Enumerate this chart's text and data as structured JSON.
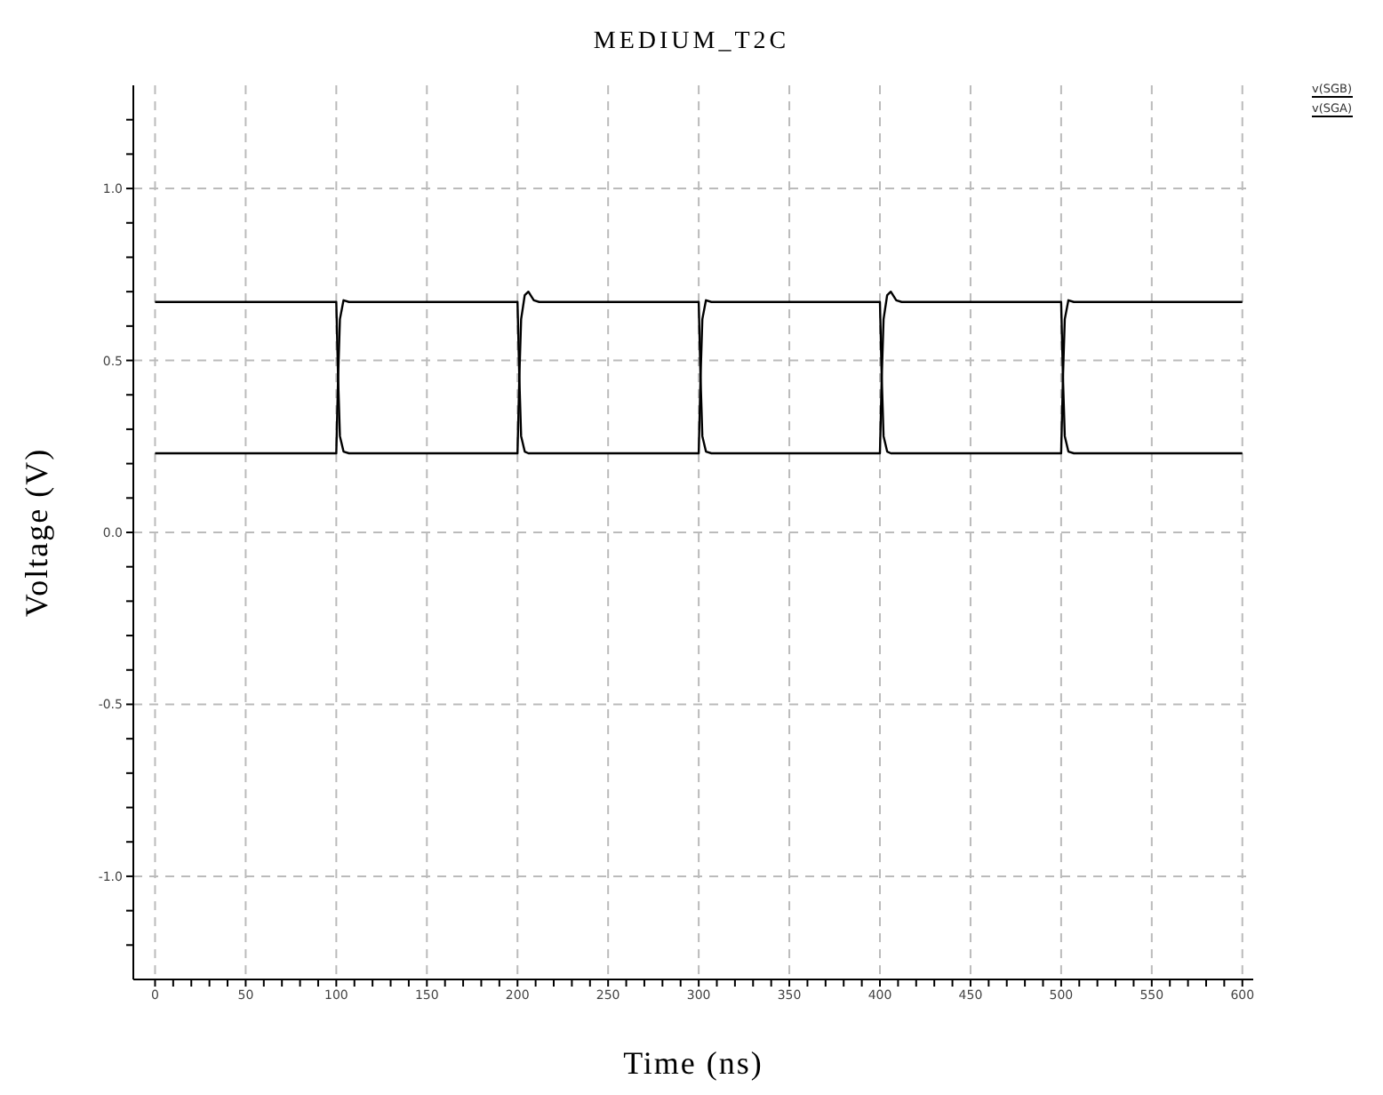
{
  "chart_data": {
    "type": "line",
    "title": "MEDIUM_T2C",
    "xlabel": "Time (ns)",
    "ylabel": "Voltage (V)",
    "xlim": [
      -12,
      606
    ],
    "ylim": [
      -1.3,
      1.3
    ],
    "xticks": [
      0,
      {
        "value": 10,
        "label": null
      },
      {
        "value": 20,
        "label": null
      },
      {
        "value": 30,
        "label": null
      },
      {
        "value": 40,
        "label": null
      },
      50,
      {
        "value": 60,
        "label": null
      },
      {
        "value": 70,
        "label": null
      },
      {
        "value": 80,
        "label": null
      },
      {
        "value": 90,
        "label": null
      },
      100,
      {
        "value": 110,
        "label": null
      },
      {
        "value": 120,
        "label": null
      },
      {
        "value": 130,
        "label": null
      },
      {
        "value": 140,
        "label": null
      },
      150,
      {
        "value": 160,
        "label": null
      },
      {
        "value": 170,
        "label": null
      },
      {
        "value": 180,
        "label": null
      },
      {
        "value": 190,
        "label": null
      },
      200,
      {
        "value": 210,
        "label": null
      },
      {
        "value": 220,
        "label": null
      },
      {
        "value": 230,
        "label": null
      },
      {
        "value": 240,
        "label": null
      },
      250,
      {
        "value": 260,
        "label": null
      },
      {
        "value": 270,
        "label": null
      },
      {
        "value": 280,
        "label": null
      },
      {
        "value": 290,
        "label": null
      },
      300,
      {
        "value": 310,
        "label": null
      },
      {
        "value": 320,
        "label": null
      },
      {
        "value": 330,
        "label": null
      },
      {
        "value": 340,
        "label": null
      },
      350,
      {
        "value": 360,
        "label": null
      },
      {
        "value": 370,
        "label": null
      },
      {
        "value": 380,
        "label": null
      },
      {
        "value": 390,
        "label": null
      },
      400,
      {
        "value": 410,
        "label": null
      },
      {
        "value": 420,
        "label": null
      },
      {
        "value": 430,
        "label": null
      },
      {
        "value": 440,
        "label": null
      },
      450,
      {
        "value": 460,
        "label": null
      },
      {
        "value": 470,
        "label": null
      },
      {
        "value": 480,
        "label": null
      },
      {
        "value": 490,
        "label": null
      },
      500,
      {
        "value": 510,
        "label": null
      },
      {
        "value": 520,
        "label": null
      },
      {
        "value": 530,
        "label": null
      },
      {
        "value": 540,
        "label": null
      },
      550,
      {
        "value": 560,
        "label": null
      },
      {
        "value": 570,
        "label": null
      },
      {
        "value": 580,
        "label": null
      },
      {
        "value": 590,
        "label": null
      },
      600
    ],
    "yticks": [
      {
        "value": -1.2,
        "label": null
      },
      {
        "value": -1.1,
        "label": null
      },
      {
        "value": -1,
        "label": "-1.0"
      },
      {
        "value": -0.9,
        "label": null
      },
      {
        "value": -0.8,
        "label": null
      },
      {
        "value": -0.7,
        "label": null
      },
      {
        "value": -0.6,
        "label": null
      },
      -0.5,
      {
        "value": -0.4,
        "label": null
      },
      {
        "value": -0.3,
        "label": null
      },
      {
        "value": -0.2,
        "label": null
      },
      {
        "value": -0.1,
        "label": null
      },
      {
        "value": 0,
        "label": "0.0"
      },
      {
        "value": 0.1,
        "label": null
      },
      {
        "value": 0.2,
        "label": null
      },
      {
        "value": 0.3,
        "label": null
      },
      {
        "value": 0.4,
        "label": null
      },
      0.5,
      {
        "value": 0.6,
        "label": null
      },
      {
        "value": 0.7,
        "label": null
      },
      {
        "value": 0.8,
        "label": null
      },
      {
        "value": 0.9,
        "label": null
      },
      {
        "value": 1,
        "label": "1.0"
      },
      {
        "value": 1.1,
        "label": null
      },
      {
        "value": 1.2,
        "label": null
      }
    ],
    "grid": true,
    "legend": "top right",
    "line_style": "solid",
    "marker": "none",
    "series": [
      {
        "name": "v(SGB)",
        "color": "#000000",
        "x": [
          0,
          100,
          101,
          102,
          104,
          107,
          200,
          201,
          202,
          204,
          206,
          209,
          212,
          300,
          301,
          302,
          304,
          307,
          400,
          401,
          402,
          404,
          406,
          409,
          412,
          500,
          501,
          502,
          504,
          507,
          600
        ],
        "values": [
          0.23,
          0.23,
          0.45,
          0.62,
          0.675,
          0.67,
          0.67,
          0.45,
          0.28,
          0.235,
          0.23,
          0.23,
          0.23,
          0.23,
          0.45,
          0.62,
          0.675,
          0.67,
          0.67,
          0.45,
          0.28,
          0.235,
          0.23,
          0.23,
          0.23,
          0.23,
          0.45,
          0.62,
          0.675,
          0.67,
          0.67
        ]
      },
      {
        "name": "v(SGA)",
        "color": "#000000",
        "x": [
          0,
          100,
          101,
          102,
          104,
          107,
          200,
          201,
          202,
          204,
          206,
          209,
          212,
          300,
          301,
          302,
          304,
          307,
          400,
          401,
          402,
          404,
          406,
          409,
          412,
          500,
          501,
          502,
          504,
          507,
          600
        ],
        "values": [
          0.67,
          0.67,
          0.45,
          0.28,
          0.235,
          0.23,
          0.23,
          0.45,
          0.62,
          0.69,
          0.7,
          0.675,
          0.67,
          0.67,
          0.45,
          0.28,
          0.235,
          0.23,
          0.23,
          0.45,
          0.62,
          0.69,
          0.7,
          0.675,
          0.67,
          0.67,
          0.45,
          0.28,
          0.235,
          0.23,
          0.23
        ]
      }
    ]
  }
}
